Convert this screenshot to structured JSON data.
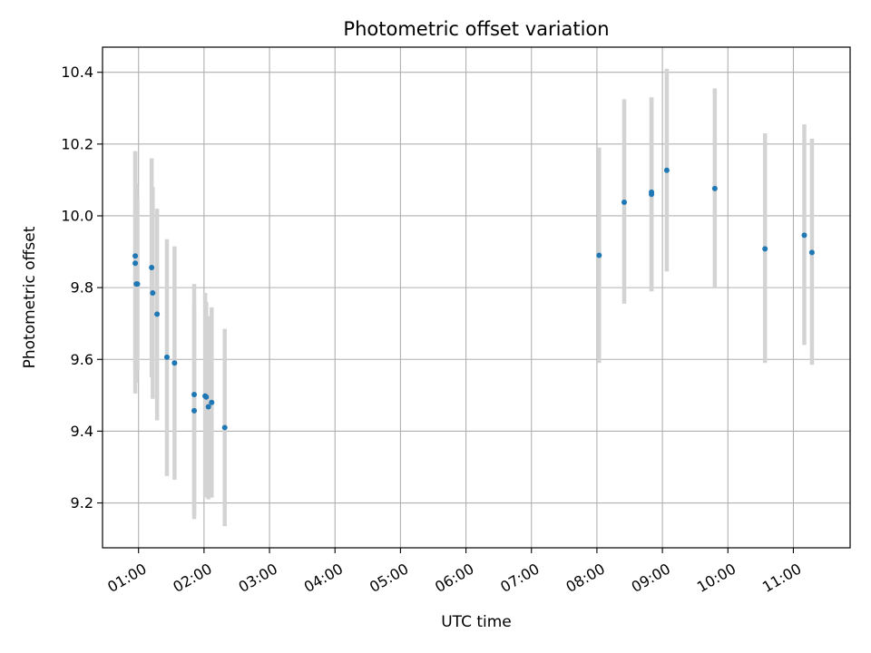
{
  "chart_data": {
    "type": "scatter",
    "title": "Photometric offset variation",
    "xlabel": "UTC time",
    "ylabel": "Photometric offset",
    "x_unit": "UTC",
    "xlim": [
      "00:27",
      "11:52"
    ],
    "ylim": [
      9.075,
      10.47
    ],
    "x_ticks": [
      "01:00",
      "02:00",
      "03:00",
      "04:00",
      "05:00",
      "06:00",
      "07:00",
      "08:00",
      "09:00",
      "10:00",
      "11:00"
    ],
    "y_ticks": [
      9.2,
      9.4,
      9.6,
      9.8,
      10.0,
      10.2,
      10.4
    ],
    "y_tick_labels": [
      "9.2",
      "9.4",
      "9.6",
      "9.8",
      "10.0",
      "10.2",
      "10.4"
    ],
    "grid": true,
    "colors": {
      "points": "#1f77b4",
      "errorbars": "#d3d3d3",
      "grid": "#b0b0b0"
    },
    "series": [
      {
        "points": [
          {
            "x": "00:57",
            "y": 9.888,
            "err_low": 9.57,
            "err_high": 10.18
          },
          {
            "x": "00:57",
            "y": 9.868,
            "err_low": 9.505,
            "err_high": 10.18
          },
          {
            "x": "00:58",
            "y": 9.81,
            "err_low": 9.535,
            "err_high": 10.09
          },
          {
            "x": "00:59",
            "y": 9.81,
            "err_low": 9.57,
            "err_high": 10.05
          },
          {
            "x": "01:12",
            "y": 9.856,
            "err_low": 9.55,
            "err_high": 10.16
          },
          {
            "x": "01:13",
            "y": 9.785,
            "err_low": 9.49,
            "err_high": 10.08
          },
          {
            "x": "01:17",
            "y": 9.726,
            "err_low": 9.43,
            "err_high": 10.02
          },
          {
            "x": "01:26",
            "y": 9.606,
            "err_low": 9.275,
            "err_high": 9.935
          },
          {
            "x": "01:33",
            "y": 9.59,
            "err_low": 9.265,
            "err_high": 9.915
          },
          {
            "x": "01:51",
            "y": 9.502,
            "err_low": 9.155,
            "err_high": 9.81
          },
          {
            "x": "01:51",
            "y": 9.457,
            "err_low": 9.165,
            "err_high": 9.75
          },
          {
            "x": "02:01",
            "y": 9.498,
            "err_low": 9.215,
            "err_high": 9.785
          },
          {
            "x": "02:02",
            "y": 9.495,
            "err_low": 9.22,
            "err_high": 9.76
          },
          {
            "x": "02:04",
            "y": 9.468,
            "err_low": 9.21,
            "err_high": 9.72
          },
          {
            "x": "02:07",
            "y": 9.48,
            "err_low": 9.215,
            "err_high": 9.745
          },
          {
            "x": "02:19",
            "y": 9.41,
            "err_low": 9.135,
            "err_high": 9.685
          },
          {
            "x": "08:02",
            "y": 9.89,
            "err_low": 9.59,
            "err_high": 10.19
          },
          {
            "x": "08:25",
            "y": 10.038,
            "err_low": 9.755,
            "err_high": 10.325
          },
          {
            "x": "08:50",
            "y": 10.066,
            "err_low": 9.79,
            "err_high": 10.33
          },
          {
            "x": "08:50",
            "y": 10.06,
            "err_low": 9.79,
            "err_high": 10.33
          },
          {
            "x": "09:04",
            "y": 10.127,
            "err_low": 9.845,
            "err_high": 10.41
          },
          {
            "x": "09:48",
            "y": 10.076,
            "err_low": 9.8,
            "err_high": 10.355
          },
          {
            "x": "10:34",
            "y": 9.908,
            "err_low": 9.59,
            "err_high": 10.23
          },
          {
            "x": "11:10",
            "y": 9.946,
            "err_low": 9.64,
            "err_high": 10.255
          },
          {
            "x": "11:17",
            "y": 9.898,
            "err_low": 9.585,
            "err_high": 10.215
          }
        ]
      }
    ]
  }
}
